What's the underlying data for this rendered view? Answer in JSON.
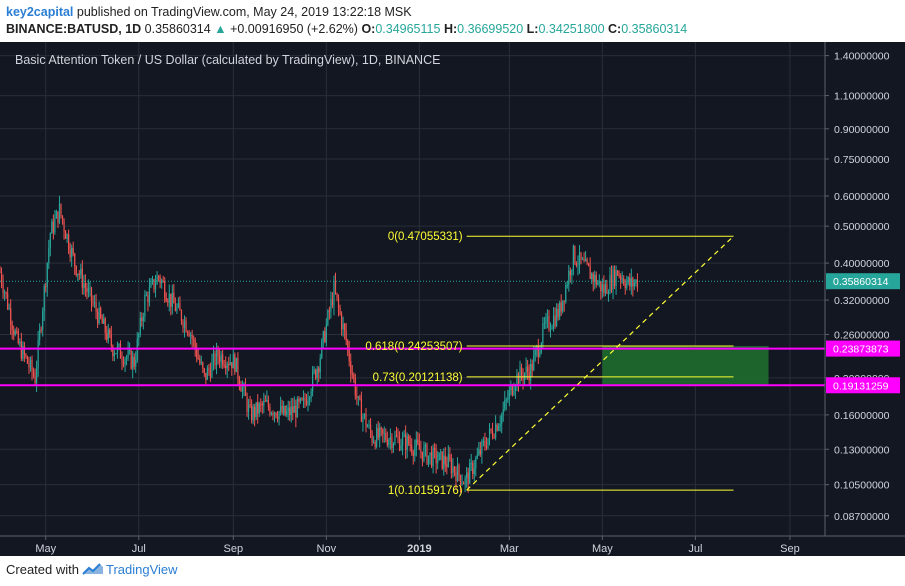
{
  "header": {
    "user": "key2capital",
    "published": "published on TradingView.com, May 24, 2019 13:22:18 MSK",
    "symbol": "BINANCE:BATUSD, 1D",
    "last": "0.35860314",
    "change": "+0.00916950 (+2.62%)",
    "o_label": "O:",
    "o_value": "0.34965115",
    "h_label": "H:",
    "h_value": "0.36699520",
    "l_label": "L:",
    "l_value": "0.34251800",
    "c_label": "C:",
    "c_value": "0.35860314"
  },
  "chart_title": "Basic Attention Token / US Dollar (calculated by TradingView), 1D, BINANCE",
  "footer": {
    "created_with": "Created with",
    "brand": "TradingView"
  },
  "colors": {
    "background": "#131722",
    "grid": "#2a2e39",
    "up": "#26a69a",
    "down": "#ef5350",
    "fib": "#ffff33",
    "level": "#ff00ff",
    "zone": "#1e6b2e",
    "price_line": "#26a69a"
  },
  "chart_data": {
    "type": "candlestick",
    "y_scale": "log",
    "y_range": [
      0.077,
      1.52
    ],
    "y_ticks": [
      "1.40000000",
      "1.10000000",
      "0.90000000",
      "0.75000000",
      "0.60000000",
      "0.50000000",
      "0.40000000",
      "0.32000000",
      "0.26000000",
      "0.20000000",
      "0.16000000",
      "0.13000000",
      "0.10500000",
      "0.08700000"
    ],
    "x_labels": [
      "May",
      "Jul",
      "Sep",
      "Nov",
      "2019",
      "Mar",
      "May",
      "Jul",
      "Sep"
    ],
    "x_range": [
      "2018-04-01",
      "2019-09-24"
    ],
    "price_label": "0.35860314",
    "fib_levels": [
      {
        "label": "0(0.47055331)",
        "value": 0.47055331
      },
      {
        "label": "0.618(0.24253507)",
        "value": 0.24253507
      },
      {
        "label": "0.73(0.20121138)",
        "value": 0.20121138
      },
      {
        "label": "1(0.10159176)",
        "value": 0.10159176
      }
    ],
    "horizontal_levels": [
      {
        "label": "0.23873873",
        "value": 0.23873873
      },
      {
        "label": "0.19131259",
        "value": 0.19131259
      }
    ],
    "target_zone": {
      "x_start": "2019-05-01",
      "x_end": "2019-08-18",
      "top": 0.24253507,
      "bottom": 0.19131259
    },
    "trendline": {
      "start": [
        "2019-02-01",
        0.10159176
      ],
      "end": [
        "2019-07-26",
        0.47055331
      ]
    },
    "fib_x_range": [
      "2019-02-01",
      "2019-07-26"
    ],
    "close_anchors": [
      [
        "2018-04-01",
        0.38
      ],
      [
        "2018-04-12",
        0.25
      ],
      [
        "2018-04-24",
        0.2
      ],
      [
        "2018-05-04",
        0.48
      ],
      [
        "2018-05-10",
        0.55
      ],
      [
        "2018-05-20",
        0.4
      ],
      [
        "2018-06-03",
        0.3
      ],
      [
        "2018-06-14",
        0.24
      ],
      [
        "2018-06-28",
        0.22
      ],
      [
        "2018-07-05",
        0.32
      ],
      [
        "2018-07-14",
        0.37
      ],
      [
        "2018-07-22",
        0.32
      ],
      [
        "2018-08-03",
        0.27
      ],
      [
        "2018-08-13",
        0.2
      ],
      [
        "2018-08-22",
        0.23
      ],
      [
        "2018-09-02",
        0.22
      ],
      [
        "2018-09-12",
        0.16
      ],
      [
        "2018-09-22",
        0.17
      ],
      [
        "2018-10-05",
        0.16
      ],
      [
        "2018-10-17",
        0.17
      ],
      [
        "2018-10-27",
        0.22
      ],
      [
        "2018-11-06",
        0.34
      ],
      [
        "2018-11-14",
        0.25
      ],
      [
        "2018-11-22",
        0.17
      ],
      [
        "2018-12-01",
        0.14
      ],
      [
        "2018-12-12",
        0.14
      ],
      [
        "2018-12-25",
        0.135
      ],
      [
        "2019-01-07",
        0.125
      ],
      [
        "2019-01-20",
        0.12
      ],
      [
        "2019-01-31",
        0.107
      ],
      [
        "2019-02-13",
        0.135
      ],
      [
        "2019-02-24",
        0.16
      ],
      [
        "2019-03-05",
        0.2
      ],
      [
        "2019-03-15",
        0.21
      ],
      [
        "2019-03-24",
        0.27
      ],
      [
        "2019-04-03",
        0.3
      ],
      [
        "2019-04-12",
        0.42
      ],
      [
        "2019-04-22",
        0.38
      ],
      [
        "2019-05-02",
        0.34
      ],
      [
        "2019-05-11",
        0.38
      ],
      [
        "2019-05-19",
        0.35
      ],
      [
        "2019-05-24",
        0.3586
      ]
    ]
  }
}
